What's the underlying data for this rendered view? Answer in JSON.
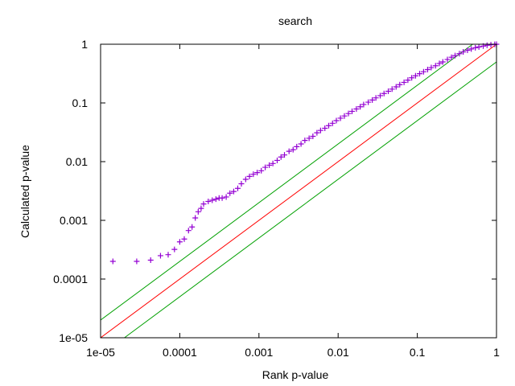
{
  "chart_data": {
    "type": "scatter",
    "title": "search",
    "xlabel": "Rank p-value",
    "ylabel": "Calculated p-value",
    "xscale": "log",
    "yscale": "log",
    "xlim": [
      1e-05,
      1
    ],
    "ylim": [
      1e-05,
      1
    ],
    "grid": false,
    "legend": "none",
    "x_ticks": [
      {
        "value": 1e-05,
        "label": "1e-05"
      },
      {
        "value": 0.0001,
        "label": "0.0001"
      },
      {
        "value": 0.001,
        "label": "0.001"
      },
      {
        "value": 0.01,
        "label": "0.01"
      },
      {
        "value": 0.1,
        "label": "0.1"
      },
      {
        "value": 1,
        "label": "1"
      }
    ],
    "y_ticks": [
      {
        "value": 1e-05,
        "label": "1e-05"
      },
      {
        "value": 0.0001,
        "label": "0.0001"
      },
      {
        "value": 0.001,
        "label": "0.001"
      },
      {
        "value": 0.01,
        "label": "0.01"
      },
      {
        "value": 0.1,
        "label": "0.1"
      },
      {
        "value": 1,
        "label": "1"
      }
    ],
    "series": [
      {
        "marker": "plus",
        "color": "#9400d3",
        "points": [
          [
            1.43e-05,
            0.0002
          ],
          [
            2.86e-05,
            0.0002
          ],
          [
            4.29e-05,
            0.00021
          ],
          [
            5.71e-05,
            0.00025
          ],
          [
            7.14e-05,
            0.00026
          ],
          [
            8.57e-05,
            0.00032
          ],
          [
            0.0001,
            0.00043
          ],
          [
            0.000114,
            0.00048
          ],
          [
            0.000129,
            0.00067
          ],
          [
            0.000143,
            0.00077
          ],
          [
            0.000157,
            0.0011
          ],
          [
            0.000171,
            0.0014
          ],
          [
            0.000186,
            0.0016
          ],
          [
            0.0002,
            0.0019
          ],
          [
            0.000229,
            0.0021
          ],
          [
            0.000257,
            0.0022
          ],
          [
            0.000286,
            0.0023
          ],
          [
            0.000314,
            0.0024
          ],
          [
            0.000343,
            0.0024
          ],
          [
            0.000386,
            0.0025
          ],
          [
            0.00043,
            0.0029
          ],
          [
            0.00048,
            0.0031
          ],
          [
            0.00054,
            0.0035
          ],
          [
            0.0006,
            0.0042
          ],
          [
            0.00068,
            0.005
          ],
          [
            0.00076,
            0.0056
          ],
          [
            0.00085,
            0.0061
          ],
          [
            0.00095,
            0.0065
          ],
          [
            0.00107,
            0.007
          ],
          [
            0.0012,
            0.008
          ],
          [
            0.00135,
            0.0087
          ],
          [
            0.0015,
            0.0093
          ],
          [
            0.0017,
            0.0105
          ],
          [
            0.0019,
            0.012
          ],
          [
            0.0021,
            0.013
          ],
          [
            0.0024,
            0.015
          ],
          [
            0.0027,
            0.016
          ],
          [
            0.003,
            0.018
          ],
          [
            0.0034,
            0.02
          ],
          [
            0.0038,
            0.023
          ],
          [
            0.0043,
            0.025
          ],
          [
            0.0048,
            0.027
          ],
          [
            0.0054,
            0.031
          ],
          [
            0.006,
            0.034
          ],
          [
            0.0068,
            0.037
          ],
          [
            0.0076,
            0.041
          ],
          [
            0.0085,
            0.045
          ],
          [
            0.0095,
            0.05
          ],
          [
            0.0107,
            0.055
          ],
          [
            0.012,
            0.06
          ],
          [
            0.0135,
            0.066
          ],
          [
            0.015,
            0.072
          ],
          [
            0.017,
            0.079
          ],
          [
            0.019,
            0.086
          ],
          [
            0.021,
            0.094
          ],
          [
            0.024,
            0.103
          ],
          [
            0.027,
            0.112
          ],
          [
            0.03,
            0.122
          ],
          [
            0.034,
            0.133
          ],
          [
            0.038,
            0.145
          ],
          [
            0.043,
            0.158
          ],
          [
            0.048,
            0.172
          ],
          [
            0.054,
            0.188
          ],
          [
            0.06,
            0.205
          ],
          [
            0.068,
            0.224
          ],
          [
            0.076,
            0.245
          ],
          [
            0.085,
            0.268
          ],
          [
            0.095,
            0.29
          ],
          [
            0.107,
            0.315
          ],
          [
            0.12,
            0.34
          ],
          [
            0.135,
            0.37
          ],
          [
            0.15,
            0.4
          ],
          [
            0.17,
            0.43
          ],
          [
            0.19,
            0.47
          ],
          [
            0.21,
            0.5
          ],
          [
            0.24,
            0.55
          ],
          [
            0.27,
            0.6
          ],
          [
            0.3,
            0.64
          ],
          [
            0.34,
            0.69
          ],
          [
            0.38,
            0.74
          ],
          [
            0.43,
            0.79
          ],
          [
            0.48,
            0.83
          ],
          [
            0.54,
            0.87
          ],
          [
            0.6,
            0.9
          ],
          [
            0.68,
            0.93
          ],
          [
            0.76,
            0.96
          ],
          [
            0.85,
            0.98
          ],
          [
            0.95,
            0.995
          ],
          [
            1.0,
            1.0
          ]
        ]
      }
    ],
    "reference_lines": [
      {
        "factor": 2,
        "color": "#00a000"
      },
      {
        "factor": 1,
        "color": "#ff0000"
      },
      {
        "factor": 0.5,
        "color": "#00a000"
      }
    ]
  }
}
